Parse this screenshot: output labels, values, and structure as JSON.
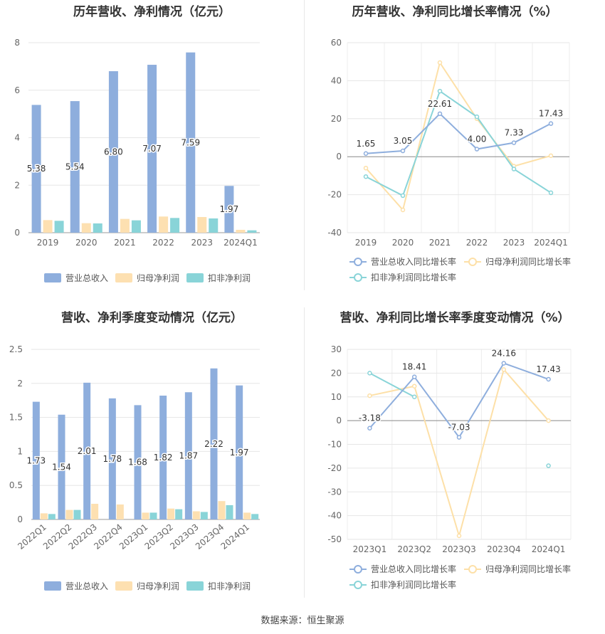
{
  "footer": {
    "source": "数据来源：恒生聚源"
  },
  "chart_data": [
    {
      "id": "annual_bar",
      "type": "bar",
      "title": "历年营收、净利情况（亿元）",
      "categories": [
        "2019",
        "2020",
        "2021",
        "2022",
        "2023",
        "2024Q1"
      ],
      "ylim": [
        0,
        8
      ],
      "yticks": [
        0,
        2,
        4,
        6,
        8
      ],
      "legend_position": "bottom",
      "series": [
        {
          "name": "营业总收入",
          "values": [
            5.38,
            5.54,
            6.8,
            7.07,
            7.59,
            1.97
          ],
          "color": "#8eaedd",
          "labels": true
        },
        {
          "name": "归母净利润",
          "values": [
            0.53,
            0.4,
            0.58,
            0.68,
            0.66,
            0.12
          ],
          "color": "#fde0b1",
          "labels": false
        },
        {
          "name": "扣非净利润",
          "values": [
            0.5,
            0.39,
            0.52,
            0.62,
            0.6,
            0.1
          ],
          "color": "#89d4d8",
          "labels": false
        }
      ]
    },
    {
      "id": "annual_line",
      "type": "line",
      "title": "历年营收、净利同比增长率情况（%）",
      "categories": [
        "2019",
        "2020",
        "2021",
        "2022",
        "2023",
        "2024Q1"
      ],
      "ylim": [
        -40,
        60
      ],
      "yticks": [
        -40,
        -20,
        0,
        20,
        40,
        60
      ],
      "legend_position": "bottom",
      "series": [
        {
          "name": "营业总收入同比增长率",
          "values": [
            1.65,
            3.05,
            22.61,
            4.0,
            7.33,
            17.43
          ],
          "color": "#8eaedd",
          "labels": true
        },
        {
          "name": "归母净利润同比增长率",
          "values": [
            -6,
            -28,
            49.5,
            20,
            -5,
            0.5
          ],
          "color": "#fde0a8",
          "labels": false
        },
        {
          "name": "扣非净利润同比增长率",
          "values": [
            -10.5,
            -20.5,
            34.5,
            21,
            -6.5,
            -19
          ],
          "color": "#89d4d8",
          "labels": false
        }
      ]
    },
    {
      "id": "quarter_bar",
      "type": "bar",
      "title": "营收、净利季度变动情况（亿元）",
      "categories": [
        "2022Q1",
        "2022Q2",
        "2022Q3",
        "2022Q4",
        "2023Q1",
        "2023Q2",
        "2023Q3",
        "2023Q4",
        "2024Q1"
      ],
      "ylim": [
        0,
        2.5
      ],
      "yticks": [
        0,
        0.5,
        1,
        1.5,
        2,
        2.5
      ],
      "ytick_labels": [
        "0",
        "0.5",
        "1",
        "1.5",
        "2",
        "2.5"
      ],
      "legend_position": "bottom",
      "series": [
        {
          "name": "营业总收入",
          "values": [
            1.73,
            1.54,
            2.01,
            1.78,
            1.68,
            1.82,
            1.87,
            2.22,
            1.97
          ],
          "color": "#8eaedd",
          "labels": true
        },
        {
          "name": "归母净利润",
          "values": [
            0.09,
            0.14,
            0.23,
            0.22,
            0.1,
            0.16,
            0.12,
            0.27,
            0.1
          ],
          "color": "#fde0b1",
          "labels": false
        },
        {
          "name": "扣非净利润",
          "values": [
            0.08,
            0.14,
            0.0,
            0.0,
            0.1,
            0.15,
            0.11,
            0.21,
            0.08
          ],
          "color": "#89d4d8",
          "labels": false
        }
      ]
    },
    {
      "id": "quarter_line",
      "type": "line",
      "title": "营收、净利同比增长率季度变动情况（%）",
      "categories": [
        "2023Q1",
        "2023Q2",
        "2023Q3",
        "2023Q4",
        "2024Q1"
      ],
      "ylim": [
        -50,
        30
      ],
      "yticks": [
        -50,
        -40,
        -30,
        -20,
        -10,
        0,
        10,
        20,
        30
      ],
      "legend_position": "bottom",
      "series": [
        {
          "name": "营业总收入同比增长率",
          "values": [
            -3.18,
            18.41,
            -7.03,
            24.16,
            17.43
          ],
          "color": "#8eaedd",
          "labels": true
        },
        {
          "name": "归母净利润同比增长率",
          "values": [
            10.5,
            14.5,
            -48.5,
            21.5,
            0
          ],
          "color": "#fde0a8",
          "labels": false
        },
        {
          "name": "扣非净利润同比增长率",
          "values": [
            20,
            10,
            null,
            null,
            -19
          ],
          "color": "#89d4d8",
          "labels": false
        }
      ]
    }
  ]
}
